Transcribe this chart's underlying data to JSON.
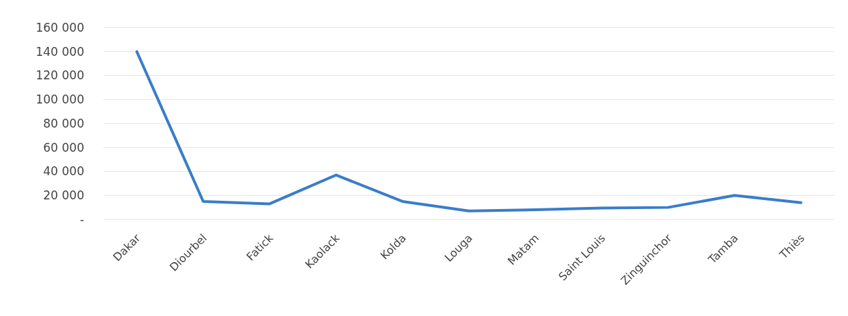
{
  "chart_data": {
    "type": "line",
    "categories": [
      "Dakar",
      "Diourbel",
      "Fatick",
      "Kaolack",
      "Kolda",
      "Louga",
      "Matam",
      "Saint Louis",
      "Zinguinchor",
      "Tamba",
      "Thiès"
    ],
    "series": [
      {
        "color": "#3a7dc9",
        "values": [
          140000,
          15000,
          13000,
          37000,
          15000,
          7000,
          8000,
          9500,
          10000,
          20000,
          14000
        ]
      }
    ],
    "ylim": [
      0,
      160000
    ],
    "yticks": [
      {
        "value": 0,
        "label": "-"
      },
      {
        "value": 20000,
        "label": "20 000"
      },
      {
        "value": 40000,
        "label": "40 000"
      },
      {
        "value": 60000,
        "label": "60 000"
      },
      {
        "value": 80000,
        "label": "80 000"
      },
      {
        "value": 100000,
        "label": "100 000"
      },
      {
        "value": 120000,
        "label": "120 000"
      },
      {
        "value": 140000,
        "label": "140 000"
      },
      {
        "value": 160000,
        "label": "160 000"
      }
    ],
    "grid": "y",
    "marker": "none",
    "line_style": "solid"
  }
}
